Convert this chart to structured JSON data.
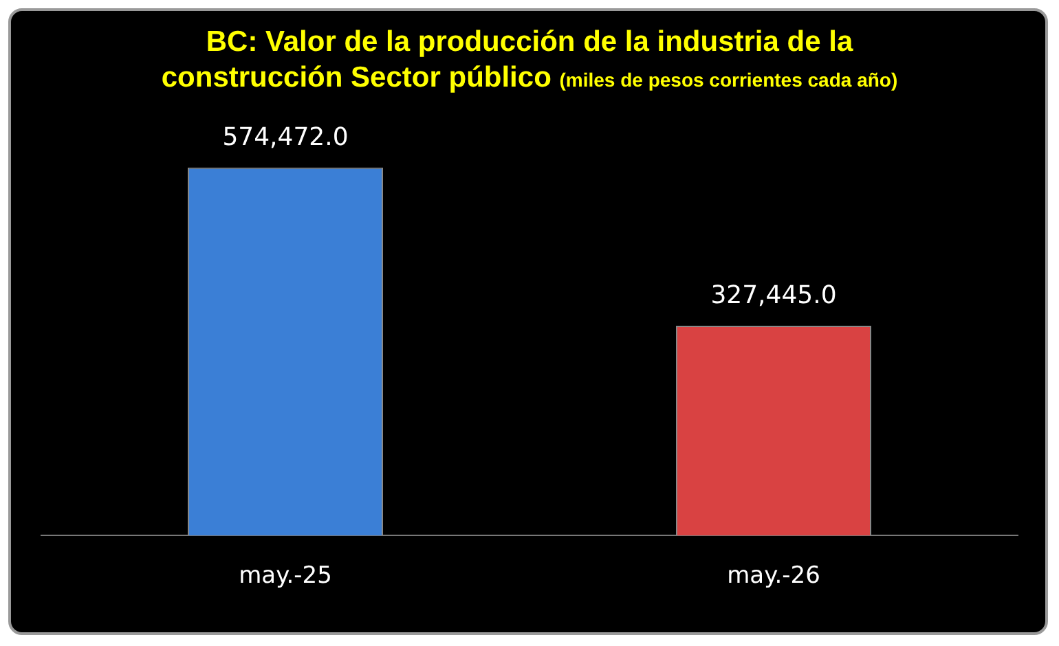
{
  "chart_data": {
    "type": "bar",
    "title": "BC: Valor de la producción de la industria de la construcción Sector público",
    "subtitle": "(miles de pesos corrientes cada año)",
    "categories": [
      "may.-25",
      "may.-26"
    ],
    "values": [
      574472.0,
      327445.0
    ],
    "colors": [
      "#3b7fd6",
      "#d94242"
    ],
    "value_labels": [
      "574,472.0",
      "327,445.0"
    ],
    "legend": false
  }
}
